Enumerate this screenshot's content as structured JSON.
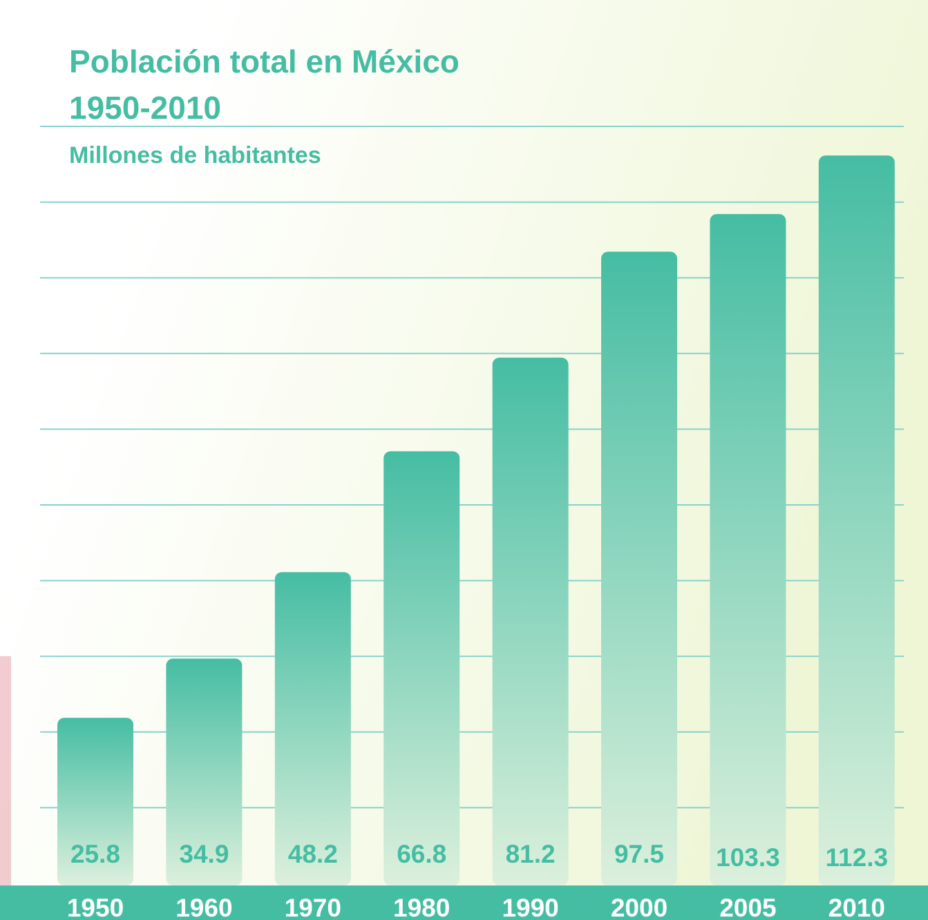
{
  "colors": {
    "accent": "#45bda3",
    "bar_top": "#45bda3",
    "bar_bottom": "#dcf0dc",
    "grid": "#86d2cb",
    "axis_band": "#45bda3",
    "category_text": "#ffffff",
    "value_text": "#45bda3",
    "background_left": "#ffffff",
    "background_right": "#eef6d6"
  },
  "chart_data": {
    "type": "bar",
    "title": "Población total en México",
    "title_line2": "1950-2010",
    "subtitle": "Millones de habitantes",
    "categories": [
      "1950",
      "1960",
      "1970",
      "1980",
      "1990",
      "2000",
      "2005",
      "2010"
    ],
    "values": [
      25.8,
      34.9,
      48.2,
      66.8,
      81.2,
      97.5,
      103.3,
      112.3
    ],
    "value_labels": [
      "25.8",
      "34.9",
      "48.2",
      "66.8",
      "81.2",
      "97.5",
      "103.3",
      "112.3"
    ],
    "ylim": [
      0,
      124
    ],
    "grid": true,
    "legend": "none"
  }
}
